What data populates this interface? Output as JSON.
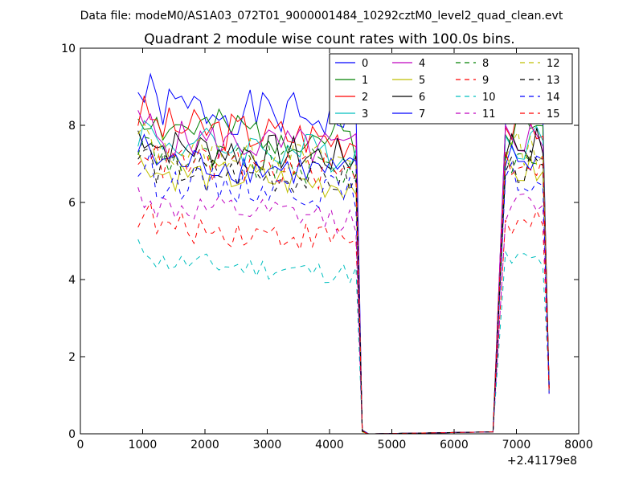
{
  "suptitle": "Data file: modeM0/AS1A03_072T01_9000001484_10292cztM0_level2_quad_clean.evt",
  "chart_data": {
    "type": "line",
    "title": "Quadrant 2 module wise count rates with 100.0s bins.",
    "xlabel": "",
    "ylabel": "",
    "x_offset_label": "+2.41179e8",
    "xlim": [
      0,
      8000
    ],
    "ylim": [
      0,
      10
    ],
    "xticks": [
      0,
      1000,
      2000,
      3000,
      4000,
      5000,
      6000,
      7000,
      8000
    ],
    "yticks": [
      0,
      2,
      4,
      6,
      8,
      10
    ],
    "grid": false,
    "legend_position": "top-right",
    "segments": [
      {
        "x_start": 925,
        "x_end": 4425,
        "step": 100
      },
      {
        "x": [
          4525,
          4625,
          4725,
          6625,
          6725,
          6825,
          6925,
          7025,
          7125,
          7225,
          7325,
          7425,
          7525
        ]
      }
    ],
    "series": [
      {
        "name": "0",
        "color": "#0000ff",
        "dash": "solid",
        "base": 8.5,
        "amp": 0.6,
        "seed": 1
      },
      {
        "name": "1",
        "color": "#008000",
        "dash": "solid",
        "base": 8.0,
        "amp": 0.55,
        "seed": 2
      },
      {
        "name": "2",
        "color": "#ff0000",
        "dash": "solid",
        "base": 8.0,
        "amp": 0.55,
        "seed": 3
      },
      {
        "name": "3",
        "color": "#00bfbf",
        "dash": "solid",
        "base": 7.6,
        "amp": 0.5,
        "seed": 4
      },
      {
        "name": "4",
        "color": "#bf00bf",
        "dash": "solid",
        "base": 7.7,
        "amp": 0.5,
        "seed": 5
      },
      {
        "name": "5",
        "color": "#bfbf00",
        "dash": "solid",
        "base": 6.8,
        "amp": 0.45,
        "seed": 6
      },
      {
        "name": "6",
        "color": "#000000",
        "dash": "solid",
        "base": 7.5,
        "amp": 0.5,
        "seed": 7
      },
      {
        "name": "7",
        "color": "#0000ff",
        "dash": "solid",
        "base": 7.1,
        "amp": 0.45,
        "seed": 8
      },
      {
        "name": "8",
        "color": "#008000",
        "dash": "dashed",
        "base": 7.2,
        "amp": 0.5,
        "seed": 9
      },
      {
        "name": "9",
        "color": "#ff0000",
        "dash": "dashed",
        "base": 5.4,
        "amp": 0.4,
        "seed": 10
      },
      {
        "name": "10",
        "color": "#00bfbf",
        "dash": "dashed",
        "base": 4.5,
        "amp": 0.3,
        "seed": 11
      },
      {
        "name": "11",
        "color": "#bf00bf",
        "dash": "dashed",
        "base": 5.9,
        "amp": 0.4,
        "seed": 12
      },
      {
        "name": "12",
        "color": "#bfbf00",
        "dash": "dashed",
        "base": 7.4,
        "amp": 0.45,
        "seed": 13
      },
      {
        "name": "13",
        "color": "#000000",
        "dash": "dashed",
        "base": 6.9,
        "amp": 0.45,
        "seed": 14
      },
      {
        "name": "14",
        "color": "#0000ff",
        "dash": "dashed",
        "base": 6.6,
        "amp": 0.45,
        "seed": 15
      },
      {
        "name": "15",
        "color": "#ff0000",
        "dash": "dashed",
        "base": 7.1,
        "amp": 0.5,
        "seed": 16
      }
    ]
  }
}
